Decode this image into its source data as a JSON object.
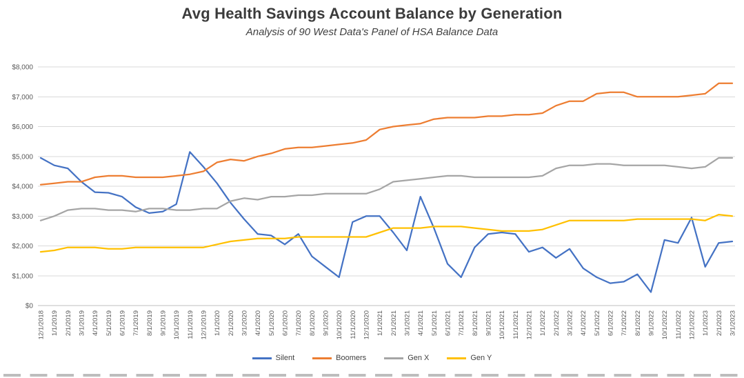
{
  "chart_data": {
    "type": "line",
    "title": "Avg Health Savings Account Balance by Generation",
    "subtitle": "Analysis of 90 West Data's Panel of HSA Balance Data",
    "legend_position": "bottom",
    "grid": "horizontal",
    "x_label_rotation": -90,
    "categories": [
      "12/1/2018",
      "1/1/2019",
      "2/1/2019",
      "3/1/2019",
      "4/1/2019",
      "5/1/2019",
      "6/1/2019",
      "7/1/2019",
      "8/1/2019",
      "9/1/2019",
      "10/1/2019",
      "11/1/2019",
      "12/1/2019",
      "1/1/2020",
      "2/1/2020",
      "3/1/2020",
      "4/1/2020",
      "5/1/2020",
      "6/1/2020",
      "7/1/2020",
      "8/1/2020",
      "9/1/2020",
      "10/1/2020",
      "11/1/2020",
      "12/1/2020",
      "1/1/2021",
      "2/1/2021",
      "3/1/2021",
      "4/1/2021",
      "5/1/2021",
      "6/1/2021",
      "7/1/2021",
      "8/1/2021",
      "9/1/2021",
      "10/1/2021",
      "11/1/2021",
      "12/1/2021",
      "1/1/2022",
      "2/1/2022",
      "3/1/2022",
      "4/1/2022",
      "5/1/2022",
      "6/1/2022",
      "7/1/2022",
      "8/1/2022",
      "9/1/2022",
      "10/1/2022",
      "11/1/2022",
      "12/1/2022",
      "1/1/2023",
      "2/1/2023",
      "3/1/2023"
    ],
    "y_axis": {
      "min": 0,
      "max": 8000,
      "step": 1000,
      "tick_labels": [
        "$0",
        "$1,000",
        "$2,000",
        "$3,000",
        "$4,000",
        "$5,000",
        "$6,000",
        "$7,000",
        "$8,000"
      ]
    },
    "series": [
      {
        "name": "Silent",
        "color": "#4472C4",
        "values": [
          4950,
          4700,
          4600,
          4150,
          3800,
          3780,
          3650,
          3300,
          3100,
          3150,
          3400,
          5150,
          4650,
          4100,
          3450,
          2900,
          2400,
          2350,
          2050,
          2400,
          1650,
          1300,
          950,
          2800,
          3000,
          3000,
          2450,
          1850,
          3650,
          2600,
          1400,
          950,
          1950,
          2400,
          2450,
          2400,
          1800,
          1950,
          1600,
          1900,
          1250,
          950,
          750,
          800,
          1050,
          450,
          2200,
          2100,
          2950,
          1300,
          2100,
          2150
        ]
      },
      {
        "name": "Boomers",
        "color": "#ED7D31",
        "values": [
          4050,
          4100,
          4150,
          4150,
          4300,
          4350,
          4350,
          4300,
          4300,
          4300,
          4350,
          4400,
          4500,
          4800,
          4900,
          4850,
          5000,
          5100,
          5250,
          5300,
          5300,
          5350,
          5400,
          5450,
          5550,
          5900,
          6000,
          6050,
          6100,
          6250,
          6300,
          6300,
          6300,
          6350,
          6350,
          6400,
          6400,
          6450,
          6700,
          6850,
          6850,
          7100,
          7150,
          7150,
          7000,
          7000,
          7000,
          7000,
          7050,
          7100,
          7450,
          7450
        ]
      },
      {
        "name": "Gen X",
        "color": "#A5A5A5",
        "values": [
          2850,
          3000,
          3200,
          3250,
          3250,
          3200,
          3200,
          3150,
          3250,
          3250,
          3200,
          3200,
          3250,
          3250,
          3500,
          3600,
          3550,
          3650,
          3650,
          3700,
          3700,
          3750,
          3750,
          3750,
          3750,
          3900,
          4150,
          4200,
          4250,
          4300,
          4350,
          4350,
          4300,
          4300,
          4300,
          4300,
          4300,
          4350,
          4600,
          4700,
          4700,
          4750,
          4750,
          4700,
          4700,
          4700,
          4700,
          4650,
          4600,
          4650,
          4950,
          4950
        ]
      },
      {
        "name": "Gen Y",
        "color": "#FFC000",
        "values": [
          1800,
          1850,
          1950,
          1950,
          1950,
          1900,
          1900,
          1950,
          1950,
          1950,
          1950,
          1950,
          1950,
          2050,
          2150,
          2200,
          2250,
          2250,
          2250,
          2300,
          2300,
          2300,
          2300,
          2300,
          2300,
          2450,
          2600,
          2600,
          2600,
          2650,
          2650,
          2650,
          2600,
          2550,
          2500,
          2500,
          2500,
          2550,
          2700,
          2850,
          2850,
          2850,
          2850,
          2850,
          2900,
          2900,
          2900,
          2900,
          2900,
          2850,
          3050,
          3000
        ]
      }
    ]
  }
}
